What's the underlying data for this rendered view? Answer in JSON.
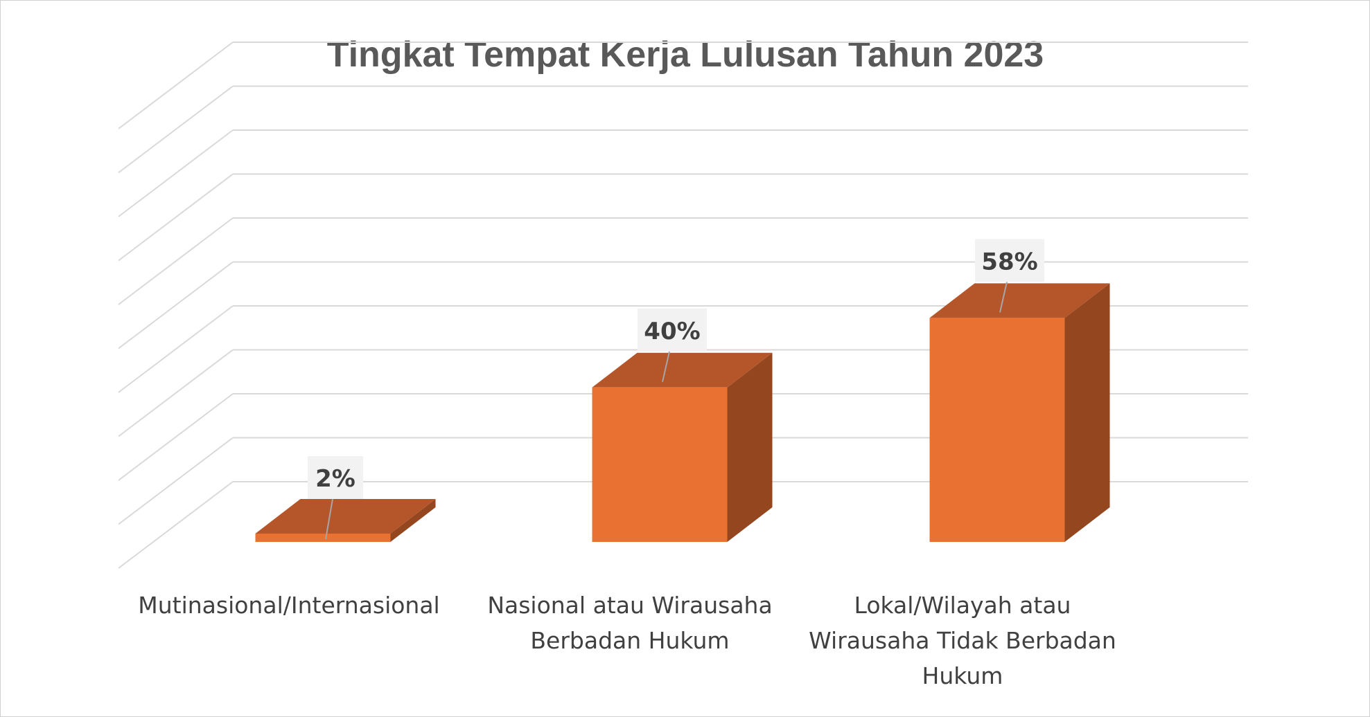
{
  "chart_data": {
    "type": "bar",
    "title": "Tingkat Tempat Kerja Lulusan Tahun 2023",
    "categories": [
      [
        "Mutinasional/Internasional"
      ],
      [
        "Nasional atau Wirausaha",
        "Berbadan Hukum"
      ],
      [
        "Lokal/Wilayah atau",
        "Wirausaha Tidak Berbadan",
        "Hukum"
      ]
    ],
    "values": [
      2,
      40,
      58
    ],
    "data_labels": [
      "2%",
      "40%",
      "58%"
    ],
    "ylim": [
      0,
      0.7
    ],
    "grid": true,
    "legend": "none",
    "three_d": true,
    "colors": {
      "bar_front": "#E97132",
      "bar_top": "#B5562A",
      "bar_side": "#94461F",
      "grid": "#d9d9d9",
      "label_bg": "#f2f2f2",
      "leader": "#a6a6a6"
    }
  }
}
